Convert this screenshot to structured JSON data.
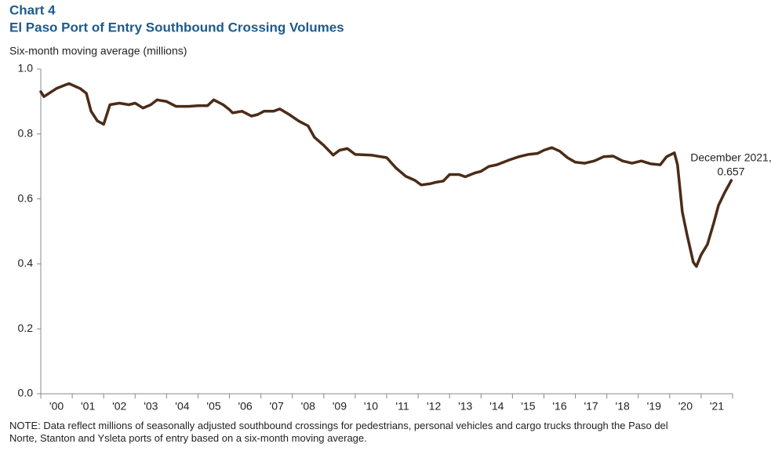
{
  "chart_data": {
    "type": "line",
    "title": "Chart 4",
    "subtitle": "El Paso Port of Entry Southbound Crossing Volumes",
    "y_label": "Six-month moving average (millions)",
    "annotation": [
      "December 2021,",
      "0.657"
    ],
    "note": [
      "NOTE: Data reflect millions of seasonally adjusted southbound crossings for pedestrians, personal vehicles and cargo trucks through the Paso del",
      "Norte, Stanton and Ysleta ports of entry based on a six-month moving average."
    ],
    "color": "#4b2c17",
    "xlim": [
      2000,
      2022
    ],
    "xticks": [
      {
        "value": 2000.5,
        "label": "'00"
      },
      {
        "value": 2001.5,
        "label": "'01"
      },
      {
        "value": 2002.5,
        "label": "'02"
      },
      {
        "value": 2003.5,
        "label": "'03"
      },
      {
        "value": 2004.5,
        "label": "'04"
      },
      {
        "value": 2005.5,
        "label": "'05"
      },
      {
        "value": 2006.5,
        "label": "'06"
      },
      {
        "value": 2007.5,
        "label": "'07"
      },
      {
        "value": 2008.5,
        "label": "'08"
      },
      {
        "value": 2009.5,
        "label": "'09"
      },
      {
        "value": 2010.5,
        "label": "'10"
      },
      {
        "value": 2011.5,
        "label": "'11"
      },
      {
        "value": 2012.5,
        "label": "'12"
      },
      {
        "value": 2013.5,
        "label": "'13"
      },
      {
        "value": 2014.5,
        "label": "'14"
      },
      {
        "value": 2015.5,
        "label": "'15"
      },
      {
        "value": 2016.5,
        "label": "'16"
      },
      {
        "value": 2017.5,
        "label": "'17"
      },
      {
        "value": 2018.5,
        "label": "'18"
      },
      {
        "value": 2019.5,
        "label": "'19"
      },
      {
        "value": 2020.5,
        "label": "'20"
      },
      {
        "value": 2021.5,
        "label": "'21"
      }
    ],
    "ylim": [
      0,
      1
    ],
    "yticks": [
      {
        "value": 0,
        "label": "0.0"
      },
      0.2,
      0.4,
      0.6,
      0.8,
      {
        "value": 1,
        "label": "1.0"
      }
    ],
    "grid": false,
    "x": [
      2000.0,
      2000.1,
      2000.5,
      2000.75,
      2000.9,
      2001.25,
      2001.45,
      2001.6,
      2001.8,
      2002.0,
      2002.2,
      2002.5,
      2002.8,
      2003.0,
      2003.25,
      2003.5,
      2003.7,
      2004.0,
      2004.3,
      2004.7,
      2005.0,
      2005.3,
      2005.5,
      2005.8,
      2006.0,
      2006.1,
      2006.4,
      2006.7,
      2006.9,
      2007.1,
      2007.4,
      2007.6,
      2007.9,
      2008.2,
      2008.5,
      2008.7,
      2009.0,
      2009.3,
      2009.5,
      2009.75,
      2010.0,
      2010.5,
      2011.0,
      2011.3,
      2011.6,
      2011.9,
      2012.1,
      2012.4,
      2012.6,
      2012.8,
      2013.0,
      2013.3,
      2013.5,
      2013.8,
      2014.0,
      2014.25,
      2014.5,
      2014.9,
      2015.2,
      2015.5,
      2015.8,
      2016.0,
      2016.25,
      2016.5,
      2016.75,
      2017.0,
      2017.3,
      2017.6,
      2017.9,
      2018.2,
      2018.5,
      2018.8,
      2019.1,
      2019.4,
      2019.7,
      2019.9,
      2020.15,
      2020.25,
      2020.4,
      2020.55,
      2020.75,
      2020.85,
      2021.0,
      2021.2,
      2021.4,
      2021.55,
      2021.75,
      2021.96
    ],
    "values": [
      0.93,
      0.915,
      0.94,
      0.95,
      0.955,
      0.94,
      0.925,
      0.87,
      0.84,
      0.83,
      0.89,
      0.895,
      0.89,
      0.895,
      0.88,
      0.89,
      0.905,
      0.9,
      0.885,
      0.885,
      0.887,
      0.887,
      0.905,
      0.89,
      0.875,
      0.865,
      0.87,
      0.855,
      0.86,
      0.87,
      0.87,
      0.877,
      0.86,
      0.84,
      0.825,
      0.79,
      0.765,
      0.735,
      0.75,
      0.755,
      0.737,
      0.735,
      0.727,
      0.695,
      0.67,
      0.657,
      0.643,
      0.647,
      0.652,
      0.655,
      0.675,
      0.675,
      0.668,
      0.68,
      0.685,
      0.7,
      0.705,
      0.72,
      0.73,
      0.737,
      0.74,
      0.75,
      0.758,
      0.747,
      0.727,
      0.713,
      0.71,
      0.717,
      0.73,
      0.732,
      0.717,
      0.71,
      0.717,
      0.708,
      0.705,
      0.73,
      0.742,
      0.705,
      0.56,
      0.49,
      0.405,
      0.392,
      0.428,
      0.46,
      0.525,
      0.58,
      0.62,
      0.657
    ]
  }
}
